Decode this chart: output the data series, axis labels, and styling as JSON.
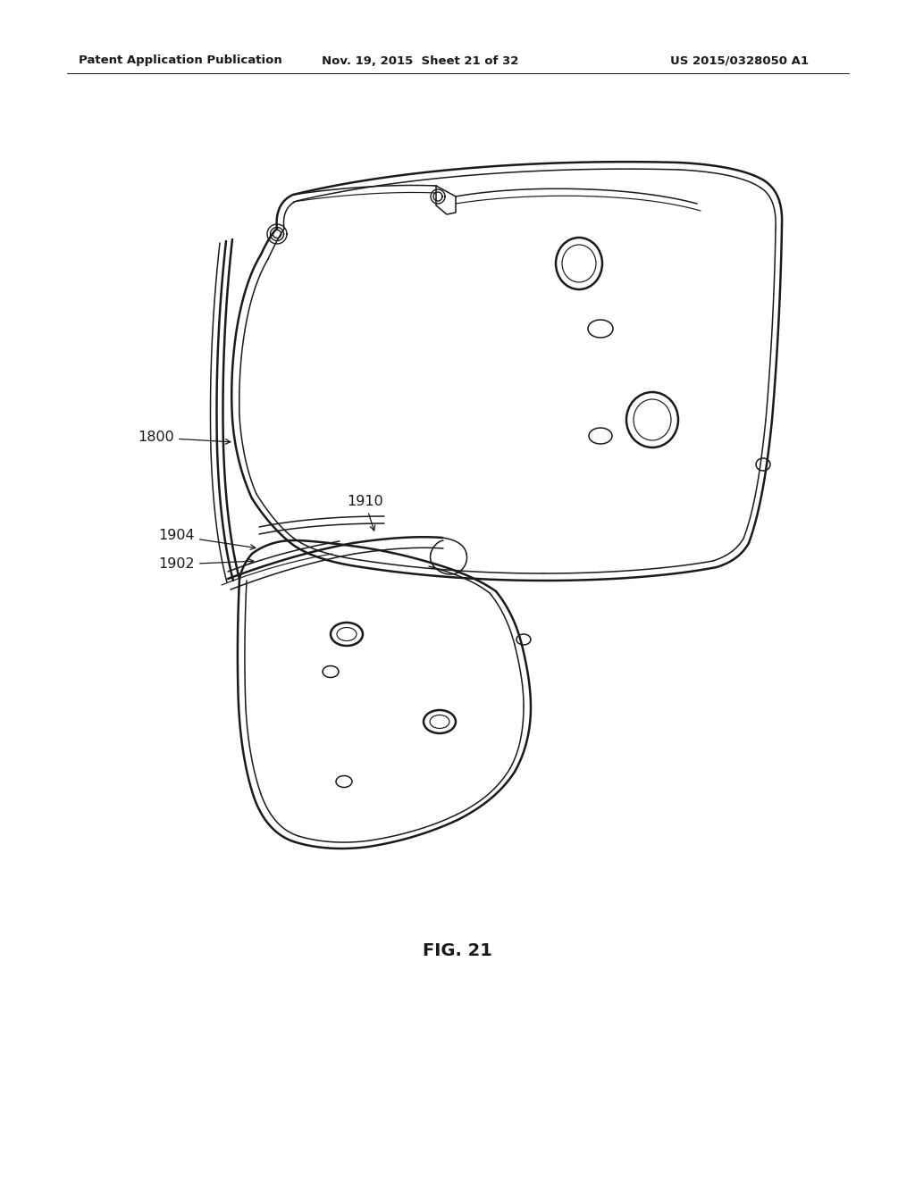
{
  "header_left": "Patent Application Publication",
  "header_mid": "Nov. 19, 2015  Sheet 21 of 32",
  "header_right": "US 2015/0328050 A1",
  "fig_label": "FIG. 21",
  "background_color": "#ffffff",
  "line_color": "#1a1a1a",
  "lw_main": 1.8,
  "lw_inner": 1.1,
  "lw_detail": 0.85,
  "header_fontsize": 9.5,
  "label_fontsize": 11.5
}
